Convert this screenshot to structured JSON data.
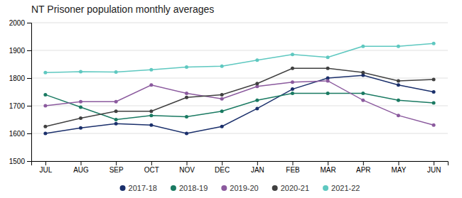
{
  "chart_data": {
    "type": "line",
    "title": "NT Prisoner population monthly averages",
    "categories": [
      "JUL",
      "AUG",
      "SEP",
      "OCT",
      "NOV",
      "DEC",
      "JAN",
      "FEB",
      "MAR",
      "APR",
      "MAY",
      "JUN"
    ],
    "series": [
      {
        "name": "2017-18",
        "color": "#1a2f6b",
        "values": [
          1600,
          1620,
          1635,
          1630,
          1600,
          1625,
          1690,
          1760,
          1800,
          1810,
          1775,
          1750
        ]
      },
      {
        "name": "2018-19",
        "color": "#1a7a62",
        "values": [
          1740,
          1695,
          1650,
          1665,
          1660,
          1680,
          1720,
          1745,
          1745,
          1745,
          1720,
          1710
        ]
      },
      {
        "name": "2019-20",
        "color": "#8b5a9e",
        "values": [
          1700,
          1715,
          1715,
          1775,
          1745,
          1725,
          1770,
          1785,
          1790,
          1720,
          1665,
          1630
        ]
      },
      {
        "name": "2020-21",
        "color": "#404040",
        "values": [
          1625,
          1655,
          1680,
          1680,
          1730,
          1740,
          1780,
          1835,
          1835,
          1820,
          1790,
          1795
        ]
      },
      {
        "name": "2021-22",
        "color": "#5ec8c0",
        "values": [
          1820,
          1823,
          1822,
          1830,
          1840,
          1843,
          1865,
          1885,
          1875,
          1915,
          1915,
          1925
        ]
      }
    ],
    "ylim": [
      1500,
      2000
    ],
    "yticks": [
      1500,
      1600,
      1700,
      1800,
      1900,
      2000
    ],
    "grid": true,
    "legend": "bottom",
    "marker": "circle"
  }
}
